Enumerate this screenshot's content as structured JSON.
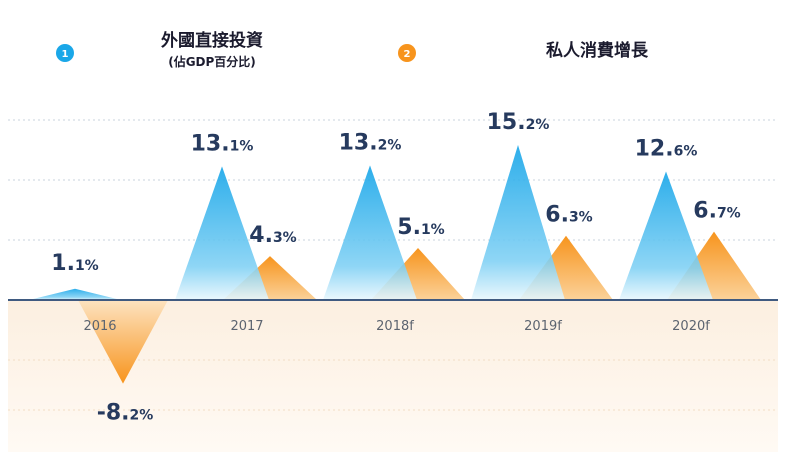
{
  "legend": [
    {
      "badge": "1",
      "title": "外國直接投資",
      "subtitle": "(佔GDP百分比)",
      "color": "#1aa7e8"
    },
    {
      "badge": "2",
      "title": "私人消費增長",
      "subtitle": "",
      "color": "#f7941d"
    }
  ],
  "chart_data": {
    "type": "area",
    "categories": [
      "2016",
      "2017",
      "2018f",
      "2019f",
      "2020f"
    ],
    "series": [
      {
        "name": "外國直接投資",
        "values": [
          1.1,
          13.1,
          13.2,
          15.2,
          12.6
        ],
        "labels": [
          {
            "major": "1.",
            "minor": "1%"
          },
          {
            "major": "13.",
            "minor": "1%"
          },
          {
            "major": "13.",
            "minor": "2%"
          },
          {
            "major": "15.",
            "minor": "2%"
          },
          {
            "major": "12.",
            "minor": "6%"
          }
        ],
        "color": "#1aa7e8"
      },
      {
        "name": "私人消費增長",
        "values": [
          -8.2,
          4.3,
          5.1,
          6.3,
          6.7
        ],
        "labels": [
          {
            "major": "-8.",
            "minor": "2%"
          },
          {
            "major": "4.",
            "minor": "3%"
          },
          {
            "major": "5.",
            "minor": "1%"
          },
          {
            "major": "6.",
            "minor": "3%"
          },
          {
            "major": "6.",
            "minor": "7%"
          }
        ],
        "color": "#f7941d"
      }
    ],
    "grid": true,
    "legend_position": "top"
  }
}
